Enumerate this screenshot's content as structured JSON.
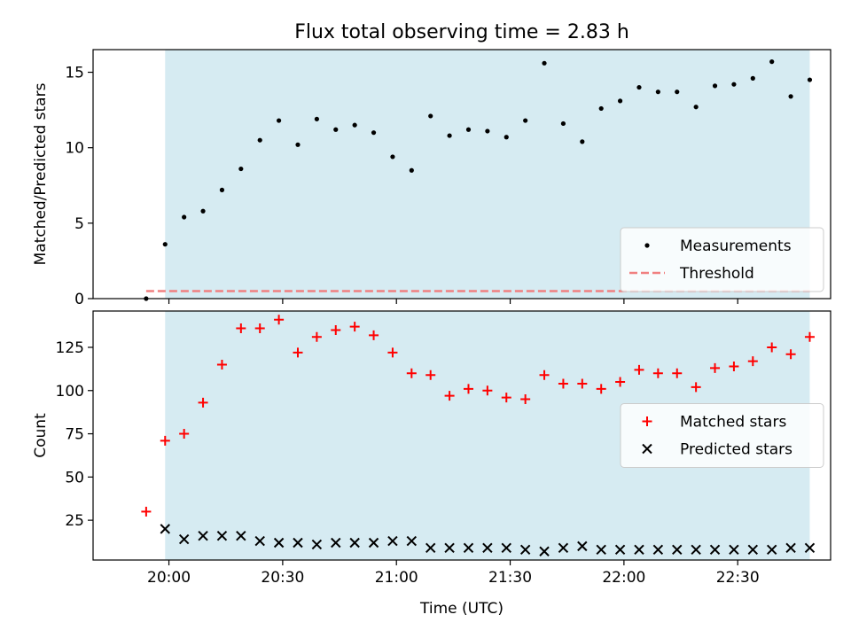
{
  "chart_data": {
    "title": "Flux total observing time = 2.83 h",
    "xlabel": "Time (UTC)",
    "x_tick_labels": [
      "20:00",
      "20:30",
      "21:00",
      "21:30",
      "22:00",
      "22:30"
    ],
    "x_ticks_minutes": [
      1200,
      1230,
      1260,
      1290,
      1320,
      1350
    ],
    "xlim_minutes": [
      1180,
      1374.5
    ],
    "shaded_span_minutes": [
      1199,
      1369
    ],
    "shade_color": "#add8e6",
    "panels": [
      {
        "type": "scatter",
        "ylabel": "Matched/Predicted stars",
        "ylim": [
          0,
          16.5
        ],
        "y_ticks": [
          0,
          5,
          10,
          15
        ],
        "y_tick_labels": [
          "0",
          "5",
          "10",
          "15"
        ],
        "legend": "lower-right",
        "series": [
          {
            "name": "Measurements",
            "marker": "dot",
            "color": "#000000",
            "x": [
              1194,
              1199,
              1204,
              1209,
              1214,
              1219,
              1224,
              1229,
              1234,
              1239,
              1244,
              1249,
              1254,
              1259,
              1264,
              1269,
              1274,
              1279,
              1284,
              1289,
              1294,
              1299,
              1304,
              1309,
              1314,
              1319,
              1324,
              1329,
              1334,
              1339,
              1344,
              1349,
              1354,
              1359,
              1364,
              1369
            ],
            "y": [
              0,
              3.6,
              5.4,
              5.8,
              7.2,
              8.6,
              10.5,
              11.8,
              10.2,
              11.9,
              11.2,
              11.5,
              11.0,
              9.4,
              8.5,
              12.1,
              10.8,
              11.2,
              11.1,
              10.7,
              11.8,
              15.6,
              11.6,
              10.4,
              12.6,
              13.1,
              14.0,
              13.7,
              13.7,
              12.7,
              14.1,
              14.2,
              14.6,
              15.7,
              13.4,
              14.5
            ]
          }
        ],
        "threshold": {
          "name": "Threshold",
          "value": 0.5,
          "color": "#f08080",
          "x_range": [
            1194,
            1369
          ]
        }
      },
      {
        "type": "scatter",
        "ylabel": "Count",
        "ylim": [
          2,
          146
        ],
        "y_ticks": [
          25,
          50,
          75,
          100,
          125
        ],
        "y_tick_labels": [
          "25",
          "50",
          "75",
          "100",
          "125"
        ],
        "legend": "center-right",
        "series": [
          {
            "name": "Matched stars",
            "marker": "plus",
            "color": "#ff0000",
            "x": [
              1194,
              1199,
              1204,
              1209,
              1214,
              1219,
              1224,
              1229,
              1234,
              1239,
              1244,
              1249,
              1254,
              1259,
              1264,
              1269,
              1274,
              1279,
              1284,
              1289,
              1294,
              1299,
              1304,
              1309,
              1314,
              1319,
              1324,
              1329,
              1334,
              1339,
              1344,
              1349,
              1354,
              1359,
              1364,
              1369
            ],
            "y": [
              30,
              71,
              75,
              93,
              115,
              136,
              136,
              141,
              122,
              131,
              135,
              137,
              132,
              122,
              110,
              109,
              97,
              101,
              100,
              96,
              95,
              109,
              104,
              104,
              101,
              105,
              112,
              110,
              110,
              102,
              113,
              114,
              117,
              125,
              121,
              131
            ]
          },
          {
            "name": "Predicted stars",
            "marker": "x",
            "color": "#000000",
            "x": [
              1199,
              1204,
              1209,
              1214,
              1219,
              1224,
              1229,
              1234,
              1239,
              1244,
              1249,
              1254,
              1259,
              1264,
              1269,
              1274,
              1279,
              1284,
              1289,
              1294,
              1299,
              1304,
              1309,
              1314,
              1319,
              1324,
              1329,
              1334,
              1339,
              1344,
              1349,
              1354,
              1359,
              1364,
              1369
            ],
            "y": [
              20,
              14,
              16,
              16,
              16,
              13,
              12,
              12,
              11,
              12,
              12,
              12,
              13,
              13,
              9,
              9,
              9,
              9,
              9,
              8,
              7,
              9,
              10,
              8,
              8,
              8,
              8,
              8,
              8,
              8,
              8,
              8,
              8,
              9,
              9
            ]
          }
        ]
      }
    ]
  }
}
